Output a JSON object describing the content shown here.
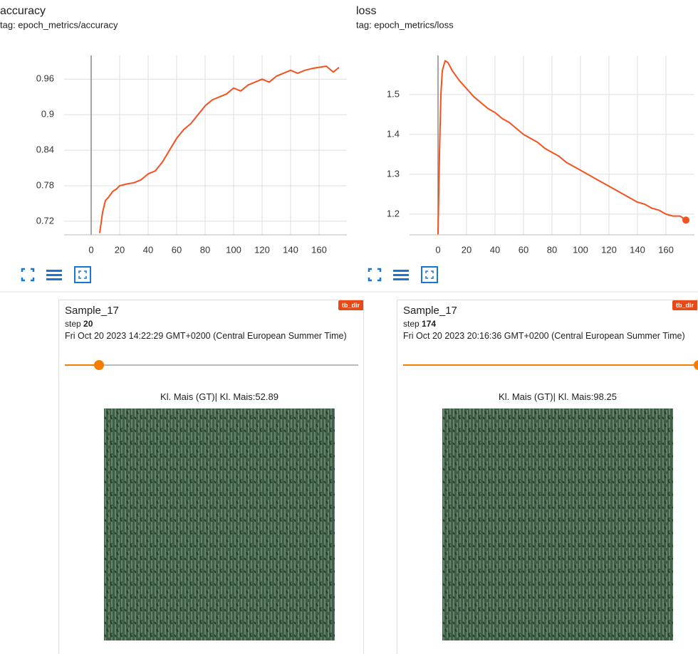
{
  "chart_data": [
    {
      "type": "line",
      "title": "accuracy",
      "subtitle": "tag: epoch_metrics/accuracy",
      "color": "#f4511e",
      "grid": true,
      "x": [
        6,
        8,
        10,
        12,
        15,
        18,
        20,
        25,
        30,
        35,
        40,
        45,
        50,
        55,
        60,
        65,
        70,
        75,
        80,
        85,
        90,
        95,
        100,
        105,
        110,
        115,
        120,
        125,
        130,
        135,
        140,
        145,
        150,
        155,
        160,
        165,
        170,
        174
      ],
      "values": [
        0.7,
        0.735,
        0.755,
        0.76,
        0.77,
        0.775,
        0.78,
        0.783,
        0.785,
        0.79,
        0.8,
        0.805,
        0.82,
        0.84,
        0.86,
        0.875,
        0.885,
        0.9,
        0.915,
        0.925,
        0.93,
        0.935,
        0.945,
        0.94,
        0.95,
        0.955,
        0.96,
        0.955,
        0.965,
        0.97,
        0.975,
        0.97,
        0.975,
        0.978,
        0.98,
        0.982,
        0.972,
        0.98
      ],
      "xlim": [
        -19,
        179.5
      ],
      "xticks": [
        0,
        20,
        40,
        60,
        80,
        100,
        120,
        140,
        160
      ],
      "ylim": [
        0.697,
        1.0
      ],
      "yticks": [
        0.72,
        0.78,
        0.84,
        0.9,
        0.96
      ]
    },
    {
      "type": "line",
      "title": "loss",
      "subtitle": "tag: epoch_metrics/loss",
      "color": "#f4511e",
      "grid": true,
      "x": [
        0,
        1,
        2,
        3,
        5,
        7,
        10,
        15,
        20,
        25,
        30,
        35,
        40,
        45,
        50,
        55,
        60,
        65,
        70,
        75,
        80,
        85,
        90,
        95,
        100,
        105,
        110,
        115,
        120,
        125,
        130,
        135,
        140,
        145,
        150,
        155,
        160,
        165,
        170,
        174
      ],
      "values": [
        1.15,
        1.35,
        1.5,
        1.56,
        1.585,
        1.58,
        1.56,
        1.535,
        1.515,
        1.495,
        1.48,
        1.465,
        1.455,
        1.44,
        1.43,
        1.415,
        1.4,
        1.39,
        1.38,
        1.365,
        1.355,
        1.345,
        1.33,
        1.32,
        1.31,
        1.3,
        1.29,
        1.28,
        1.27,
        1.26,
        1.25,
        1.24,
        1.23,
        1.225,
        1.215,
        1.21,
        1.2,
        1.195,
        1.195,
        1.185
      ],
      "xlim": [
        -20,
        180
      ],
      "xticks": [
        0,
        20,
        40,
        60,
        80,
        100,
        120,
        140,
        160
      ],
      "ylim": [
        1.148,
        1.598
      ],
      "yticks": [
        1.2,
        1.3,
        1.4,
        1.5
      ]
    }
  ],
  "cards": [
    {
      "title": "Sample_17",
      "badge": "tb_dir",
      "step_label": "step",
      "step": 20,
      "time": "Fri Oct 20 2023 14:22:29 GMT+0200 (Central European Summer Time)",
      "caption": "Kl. Mais (GT)| Kl. Mais:52.89"
    },
    {
      "title": "Sample_17",
      "badge": "tb_dir",
      "step_label": "step",
      "step": 174,
      "time": "Fri Oct 20 2023 20:16:36 GMT+0200 (Central European Summer Time)",
      "caption": "Kl. Mais (GT)| Kl. Mais:98.25"
    }
  ]
}
